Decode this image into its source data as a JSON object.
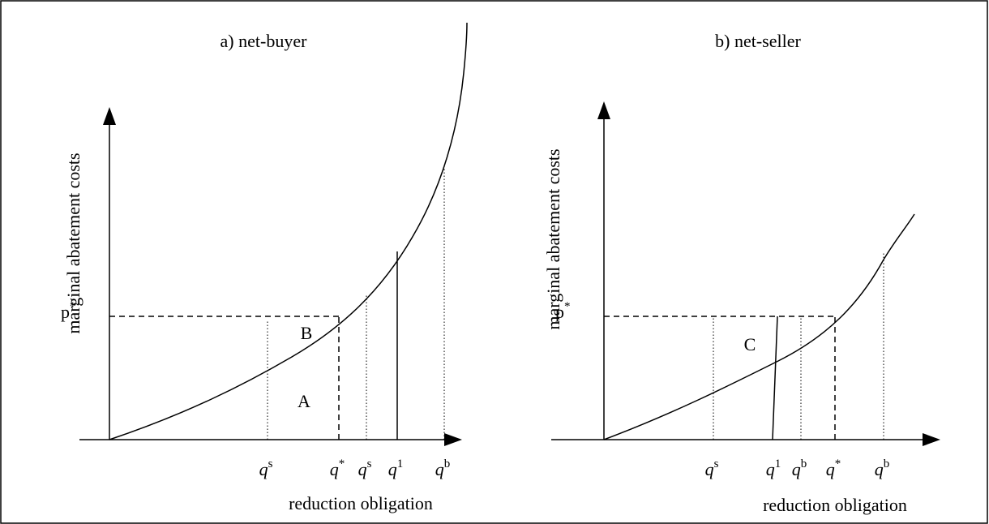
{
  "panels": [
    {
      "title": "a) net-buyer",
      "y_label": "marginal abatement costs",
      "x_label": "reduction obligation",
      "price_label": {
        "base": "p",
        "sup": "*"
      },
      "q_labels": [
        {
          "base": "q",
          "sup": "s"
        },
        {
          "base": "q",
          "sup": "*"
        },
        {
          "base": "q",
          "sup": "s"
        },
        {
          "base": "q",
          "sup": "1"
        },
        {
          "base": "q",
          "sup": "b"
        }
      ],
      "regions": [
        "B",
        "A"
      ]
    },
    {
      "title": "b) net-seller",
      "y_label": "marginal abatement costs",
      "x_label": "reduction obligation",
      "price_label": {
        "base": "p",
        "sup": "*"
      },
      "q_labels": [
        {
          "base": "q",
          "sup": "s"
        },
        {
          "base": "q",
          "sup": "1"
        },
        {
          "base": "q",
          "sup": "b"
        },
        {
          "base": "q",
          "sup": "*"
        },
        {
          "base": "q",
          "sup": "b"
        }
      ],
      "regions": [
        "C"
      ]
    }
  ]
}
